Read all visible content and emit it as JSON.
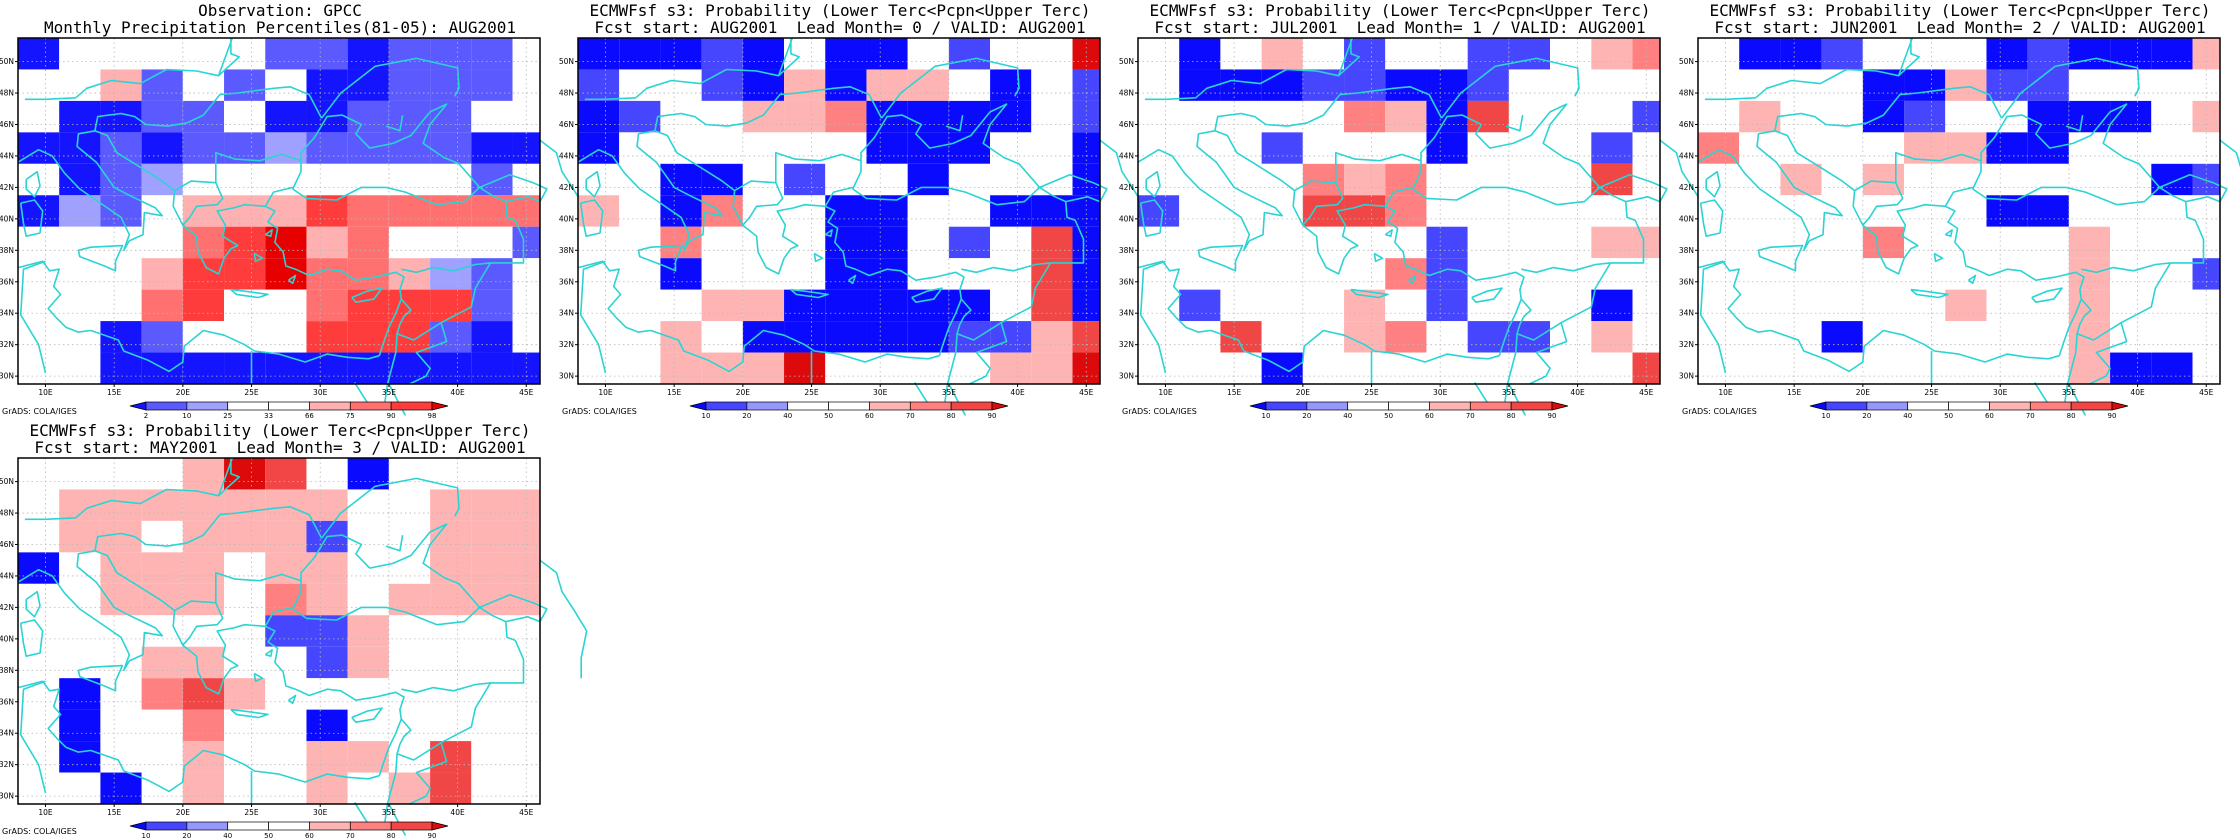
{
  "grads_credit": "GrADS: COLA/IGES",
  "axes": {
    "lon_ticks": [
      "10E",
      "15E",
      "20E",
      "25E",
      "30E",
      "35E",
      "40E",
      "45E"
    ],
    "lat_ticks": [
      "50N",
      "48N",
      "46N",
      "44N",
      "42N",
      "40N",
      "38N",
      "36N",
      "34N",
      "32N",
      "30N"
    ],
    "lon_range": [
      8,
      46
    ],
    "lat_range": [
      29.5,
      51.5
    ]
  },
  "colors": {
    "coastline": "#2ad4d4",
    "obs_scale": [
      "#1414ff",
      "#5a5aff",
      "#a0a0ff",
      "#ffffff",
      "#ffffff",
      "#ffb0b0",
      "#ff7070",
      "#ff3c3c",
      "#e60000"
    ],
    "prob_scale": [
      "#0a0aff",
      "#4646ff",
      "#9696ff",
      "#ffffff",
      "#ffffff",
      "#ffb4b4",
      "#ff8080",
      "#f04646",
      "#dc0a0a"
    ]
  },
  "colorbars": {
    "obs": {
      "labels": [
        "2",
        "10",
        "25",
        "33",
        "66",
        "75",
        "90",
        "98"
      ]
    },
    "prob": {
      "labels": [
        "10",
        "20",
        "40",
        "50",
        "60",
        "70",
        "80",
        "90"
      ]
    }
  },
  "panels": [
    {
      "title_line1": "Observation: GPCC",
      "title_line2": "Monthly Precipitation Percentiles(81-05): AUG2001",
      "scale": "obs"
    },
    {
      "title_line1": "ECMWFsf s3: Probability (Lower Terc<Pcpn<Upper Terc)",
      "title_line2": "Fcst start: AUG2001  Lead Month= 0 / VALID: AUG2001",
      "scale": "prob"
    },
    {
      "title_line1": "ECMWFsf s3: Probability (Lower Terc<Pcpn<Upper Terc)",
      "title_line2": "Fcst start: JUL2001  Lead Month= 1 / VALID: AUG2001",
      "scale": "prob"
    },
    {
      "title_line1": "ECMWFsf s3: Probability (Lower Terc<Pcpn<Upper Terc)",
      "title_line2": "Fcst start: JUN2001  Lead Month= 2 / VALID: AUG2001",
      "scale": "prob"
    },
    {
      "title_line1": "ECMWFsf s3: Probability (Lower Terc<Pcpn<Upper Terc)",
      "title_line2": "Fcst start: MAY2001  Lead Month= 3 / VALID: AUG2001",
      "scale": "prob"
    }
  ],
  "grids": [
    [
      "0444441101113",
      "4451413001114",
      "4001140011143",
      "0010112111100",
      "4012444444414",
      "0214555766666",
      "4444678564441",
      "4445778665214",
      "4436744677714",
      "4401444777104",
      "4400000000000"
    ],
    [
      "0001040031448",
      "1441050554041",
      "0144556000041",
      "0444444000440",
      "4400414404440",
      "5406440044000",
      "4464440041470",
      "4404440044470",
      "4445500000470",
      "4454000001157",
      "4455584444558"
    ],
    [
      "4045414411456",
      "4000110013444",
      "4444465074441",
      "4441444044414",
      "4444656444474",
      "1444776444444",
      "4444444144455",
      "4444446144444",
      "4144454144404",
      "4474456411454",
      "4440444444447"
    ],
    [
      "4001444010005",
      "4444005114444",
      "4544014400045",
      "6444455004444",
      "4454544444401",
      "4444444004444",
      "4444644445444",
      "4444444445441",
      "4444445445444",
      "4440444445444",
      "4444444445004"
    ],
    [
      "4444587404444",
      "4555555544555",
      "4554555144555",
      "0455545544555",
      "4455546545555",
      "4444441154444",
      "4445544154444",
      "4046754444444",
      "4044644044444",
      "4044544554744",
      "4404544545744"
    ]
  ]
}
